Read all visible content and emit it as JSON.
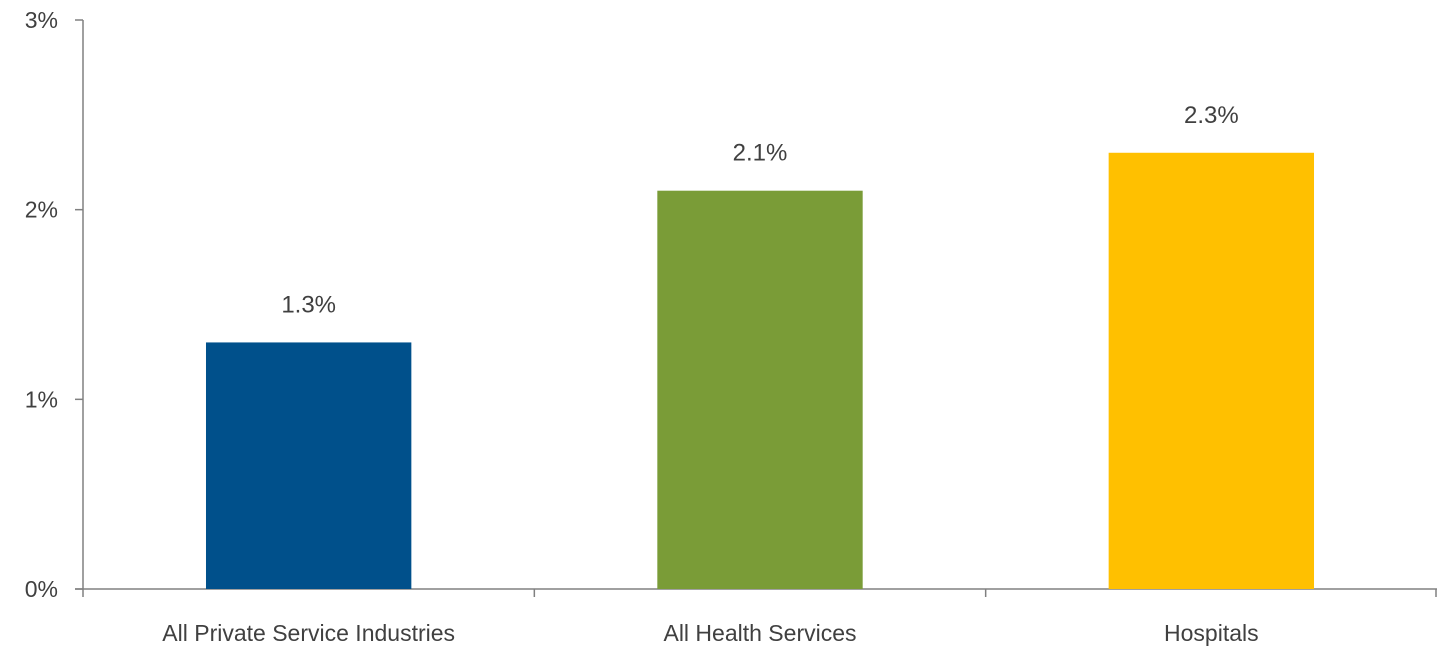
{
  "chart_data": {
    "type": "bar",
    "categories": [
      "All Private Service Industries",
      "All Health Services",
      "Hospitals"
    ],
    "values": [
      1.3,
      2.1,
      2.3
    ],
    "value_labels": [
      "1.3%",
      "2.1%",
      "2.3%"
    ],
    "colors": [
      "#00508B",
      "#7A9C37",
      "#FFC000"
    ],
    "ylim": [
      0,
      3
    ],
    "yticks": [
      0,
      1,
      2,
      3
    ],
    "ytick_labels": [
      "0%",
      "1%",
      "2%",
      "3%"
    ],
    "grid": false,
    "legend": "none",
    "axis_color": "#808080",
    "text_color": "#404040"
  }
}
